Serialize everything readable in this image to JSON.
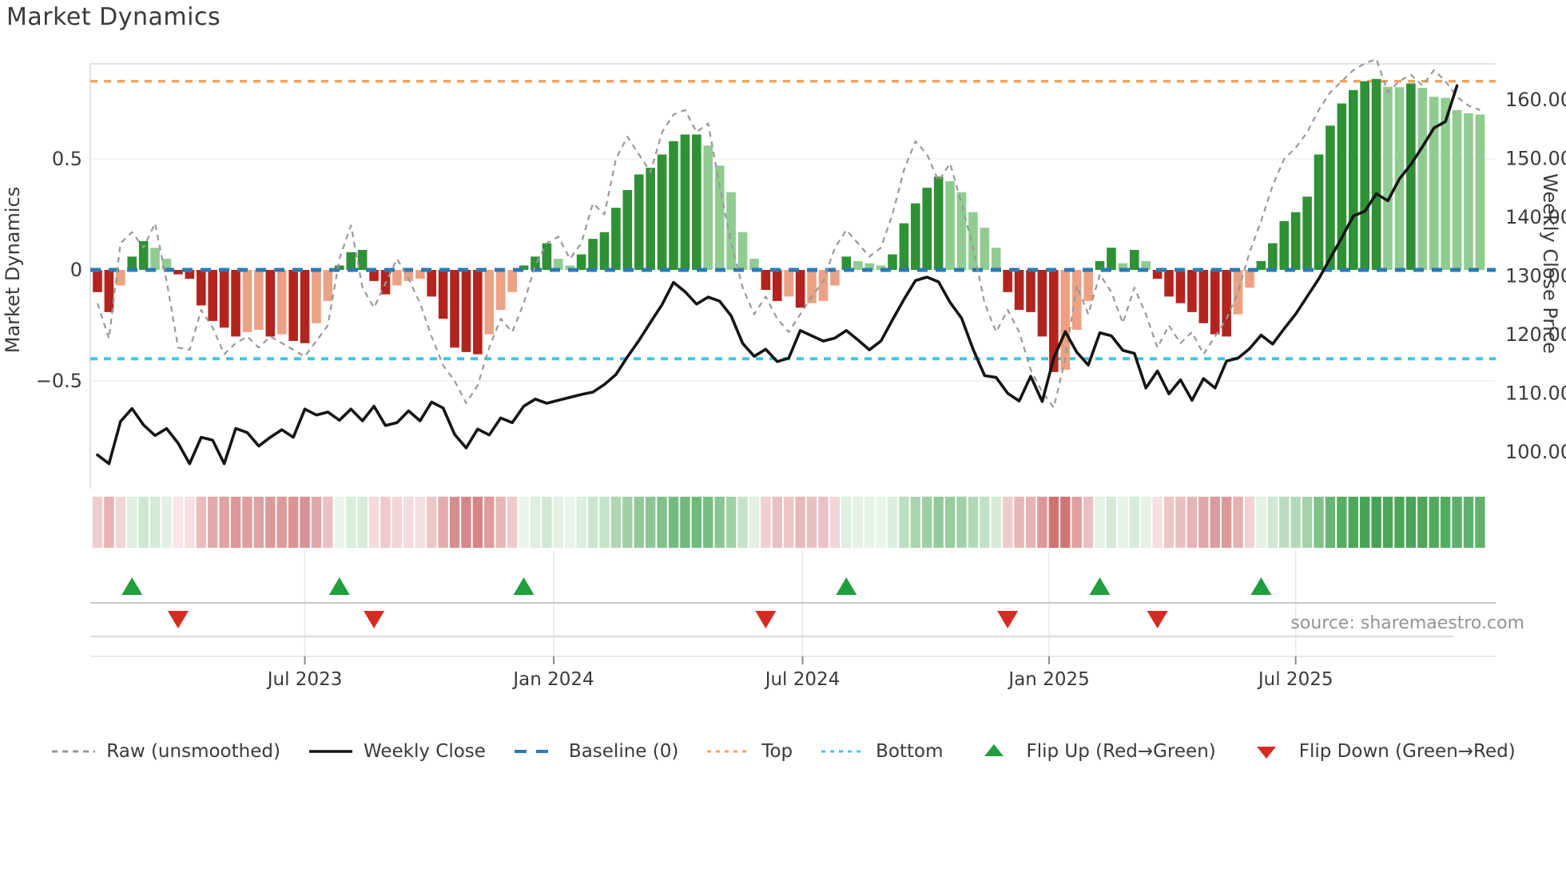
{
  "title": "Market Dynamics",
  "source": "source: sharemaestro.com",
  "axes": {
    "left_label": "Market Dynamics",
    "right_label": "Weekly Close Price",
    "left_ticks": [
      {
        "value": 0.5,
        "label": "0.5"
      },
      {
        "value": 0.0,
        "label": "0"
      },
      {
        "value": -0.5,
        "label": "−0.5"
      }
    ],
    "right_ticks": [
      {
        "value": 160,
        "label": "160.00"
      },
      {
        "value": 150,
        "label": "150.00"
      },
      {
        "value": 140,
        "label": "140.00"
      },
      {
        "value": 130,
        "label": "130.00"
      },
      {
        "value": 120,
        "label": "120.00"
      },
      {
        "value": 110,
        "label": "110.00"
      },
      {
        "value": 100,
        "label": "100.00"
      }
    ],
    "x_ticks": [
      {
        "index": 18.0,
        "label": "Jul 2023"
      },
      {
        "index": 39.6,
        "label": "Jan 2024"
      },
      {
        "index": 61.2,
        "label": "Jul 2024"
      },
      {
        "index": 82.6,
        "label": "Jan 2025"
      },
      {
        "index": 104.0,
        "label": "Jul 2025"
      }
    ]
  },
  "reference_lines": {
    "baseline": {
      "value": 0,
      "label": "Baseline (0)",
      "color": "#2a7ab5"
    },
    "top": {
      "value": 0.85,
      "label": "Top",
      "color": "#f2a35f"
    },
    "bottom": {
      "value": -0.4,
      "label": "Bottom",
      "color": "#3cc8e6"
    }
  },
  "colors": {
    "bar_pos_strong": "#2e9134",
    "bar_pos_weak": "#90cc90",
    "bar_neg_strong": "#b3241f",
    "bar_neg_weak": "#eba183",
    "raw_line": "#989898",
    "close_line": "#151515",
    "flip_up": "#1f9e3e",
    "flip_down": "#d62b23",
    "grid": "#ededf5",
    "spine": "#d8d8e0"
  },
  "legend": [
    {
      "label": "Raw (unsmoothed)",
      "swatch": "dashed-line",
      "color": "#989898"
    },
    {
      "label": "Weekly Close",
      "swatch": "solid-line",
      "color": "#151515"
    },
    {
      "label": "Baseline (0)",
      "swatch": "long-dash",
      "color": "#2a7ab5"
    },
    {
      "label": "Top",
      "swatch": "dotted-line",
      "color": "#f2a35f"
    },
    {
      "label": "Bottom",
      "swatch": "dotted-line",
      "color": "#3cc8e6"
    },
    {
      "label": "Flip Up (Red→Green)",
      "swatch": "triangle-up",
      "color": "#1f9e3e"
    },
    {
      "label": "Flip Down (Green→Red)",
      "swatch": "triangle-down",
      "color": "#d62b23"
    }
  ],
  "chart_data": {
    "type": "combo",
    "title": "Market Dynamics",
    "left_ylabel": "Market Dynamics",
    "right_ylabel": "Weekly Close Price",
    "left_ylim": [
      -0.99,
      0.93
    ],
    "right_ylim": [
      93.7,
      166.1
    ],
    "top_threshold": 0.85,
    "bottom_threshold": -0.4,
    "baseline": 0,
    "x_tick_labels": [
      "Jul 2023",
      "Jan 2024",
      "Jul 2024",
      "Jan 2025",
      "Jul 2025"
    ],
    "oscillator": [
      -0.1,
      -0.19,
      -0.07,
      0.06,
      0.13,
      0.1,
      0.05,
      -0.02,
      -0.04,
      -0.16,
      -0.23,
      -0.26,
      -0.3,
      -0.28,
      -0.27,
      -0.3,
      -0.29,
      -0.32,
      -0.33,
      -0.24,
      -0.14,
      0.02,
      0.08,
      0.09,
      -0.05,
      -0.11,
      -0.07,
      -0.05,
      -0.04,
      -0.12,
      -0.22,
      -0.35,
      -0.37,
      -0.38,
      -0.29,
      -0.18,
      -0.1,
      0.02,
      0.06,
      0.12,
      0.05,
      0.02,
      0.07,
      0.14,
      0.17,
      0.28,
      0.36,
      0.43,
      0.46,
      0.52,
      0.58,
      0.61,
      0.61,
      0.56,
      0.47,
      0.35,
      0.17,
      0.05,
      -0.09,
      -0.14,
      -0.12,
      -0.17,
      -0.15,
      -0.14,
      -0.07,
      0.06,
      0.04,
      0.03,
      0.02,
      0.07,
      0.21,
      0.3,
      0.37,
      0.42,
      0.4,
      0.35,
      0.26,
      0.19,
      0.1,
      -0.1,
      -0.18,
      -0.19,
      -0.3,
      -0.46,
      -0.45,
      -0.27,
      -0.14,
      0.04,
      0.1,
      0.03,
      0.09,
      0.04,
      -0.04,
      -0.12,
      -0.15,
      -0.19,
      -0.24,
      -0.29,
      -0.3,
      -0.2,
      -0.08,
      0.04,
      0.12,
      0.22,
      0.26,
      0.33,
      0.52,
      0.65,
      0.75,
      0.81,
      0.85,
      0.86,
      0.825,
      0.823,
      0.84,
      0.82,
      0.78,
      0.775,
      0.72,
      0.705,
      0.7
    ],
    "raw": [
      -0.15,
      -0.31,
      0.12,
      0.17,
      0.1,
      0.21,
      -0.05,
      -0.35,
      -0.36,
      -0.18,
      -0.26,
      -0.38,
      -0.33,
      -0.3,
      -0.35,
      -0.3,
      -0.33,
      -0.36,
      -0.39,
      -0.32,
      -0.25,
      0.05,
      0.2,
      -0.08,
      -0.17,
      -0.06,
      0.05,
      -0.04,
      -0.15,
      -0.3,
      -0.43,
      -0.5,
      -0.6,
      -0.52,
      -0.35,
      -0.22,
      -0.28,
      -0.15,
      0.02,
      0.12,
      0.15,
      0.05,
      0.12,
      0.3,
      0.25,
      0.5,
      0.6,
      0.52,
      0.44,
      0.62,
      0.7,
      0.72,
      0.62,
      0.66,
      0.38,
      0.12,
      -0.08,
      -0.2,
      -0.12,
      -0.22,
      -0.28,
      -0.2,
      -0.12,
      -0.05,
      0.1,
      0.18,
      0.12,
      0.06,
      0.1,
      0.25,
      0.45,
      0.58,
      0.52,
      0.4,
      0.48,
      0.3,
      0.1,
      -0.15,
      -0.28,
      -0.18,
      -0.28,
      -0.45,
      -0.55,
      -0.62,
      -0.4,
      -0.07,
      -0.2,
      -0.02,
      -0.1,
      -0.24,
      -0.08,
      -0.2,
      -0.35,
      -0.25,
      -0.33,
      -0.28,
      -0.38,
      -0.3,
      -0.22,
      -0.1,
      0.08,
      0.22,
      0.38,
      0.5,
      0.55,
      0.62,
      0.72,
      0.8,
      0.85,
      0.9,
      0.93,
      0.95,
      0.8,
      0.85,
      0.88,
      0.83,
      0.9,
      0.85,
      0.78,
      0.74,
      0.72
    ],
    "weekly_close": [
      99.5,
      98.0,
      105.2,
      107.4,
      104.6,
      102.8,
      104.0,
      101.5,
      98.0,
      102.5,
      102.0,
      98.0,
      104.0,
      103.3,
      101.0,
      102.5,
      103.8,
      102.5,
      107.3,
      106.3,
      106.8,
      105.4,
      107.3,
      105.3,
      107.8,
      104.5,
      105.0,
      107.0,
      105.3,
      108.5,
      107.5,
      103.0,
      100.7,
      103.9,
      102.9,
      105.8,
      105.0,
      107.8,
      109.0,
      108.3,
      108.8,
      109.3,
      109.8,
      110.2,
      111.5,
      113.2,
      116.2,
      119.0,
      122.1,
      125.1,
      128.9,
      127.3,
      125.2,
      126.4,
      125.7,
      123.2,
      118.5,
      116.3,
      117.5,
      115.4,
      116.0,
      120.7,
      119.8,
      118.9,
      119.4,
      120.7,
      119.1,
      117.4,
      118.9,
      122.5,
      126.0,
      129.2,
      129.8,
      129.0,
      125.5,
      122.8,
      117.5,
      113.0,
      112.7,
      110.0,
      108.7,
      112.9,
      108.6,
      116.0,
      120.5,
      117.0,
      114.8,
      120.3,
      119.8,
      117.3,
      116.8,
      110.9,
      113.8,
      109.9,
      112.3,
      108.8,
      112.5,
      110.9,
      115.5,
      116.0,
      117.6,
      119.9,
      118.4,
      121.0,
      123.5,
      126.5,
      129.5,
      133.0,
      136.5,
      140.2,
      141.0,
      144.0,
      142.8,
      146.5,
      149.0,
      152.0,
      155.2,
      156.3,
      162.4
    ],
    "flip_up_indices": [
      3,
      21,
      37,
      65,
      87,
      101
    ],
    "flip_down_indices": [
      7,
      24,
      58,
      79,
      92
    ],
    "heatmap": "derived: sign and magnitude of oscillator values rendered as red→green cells"
  }
}
